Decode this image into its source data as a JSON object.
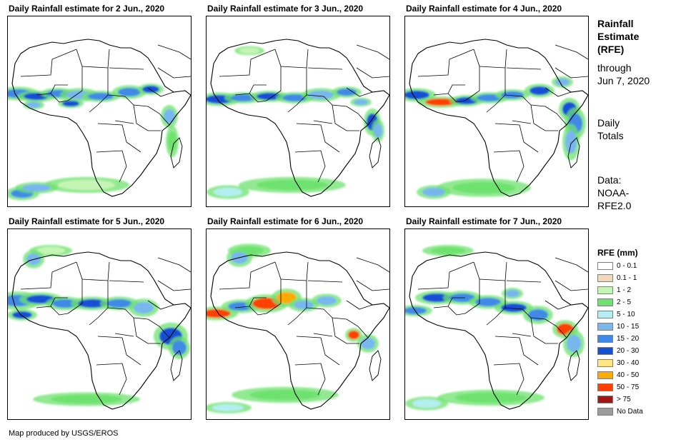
{
  "panels": [
    {
      "title": "Daily Rainfall estimate for 2 Jun., 2020",
      "map_label": "Rainfall map of Africa, 2 Jun. 2020"
    },
    {
      "title": "Daily Rainfall estimate for 3 Jun., 2020",
      "map_label": "Rainfall map of Africa, 3 Jun. 2020"
    },
    {
      "title": "Daily Rainfall estimate for 4 Jun., 2020",
      "map_label": "Rainfall map of Africa, 4 Jun. 2020"
    },
    {
      "title": "Daily Rainfall estimate for 5 Jun., 2020",
      "map_label": "Rainfall map of Africa, 5 Jun. 2020"
    },
    {
      "title": "Daily Rainfall estimate for 6 Jun., 2020",
      "map_label": "Rainfall map of Africa, 6 Jun. 2020"
    },
    {
      "title": "Daily Rainfall estimate for 7 Jun., 2020",
      "map_label": "Rainfall map of Africa, 7 Jun. 2020"
    }
  ],
  "sidebar": {
    "title_lines": [
      "Rainfall",
      "Estimate",
      "(RFE)"
    ],
    "through_lines": [
      "through",
      "Jun 7, 2020"
    ],
    "totals_lines": [
      "Daily",
      "Totals"
    ],
    "data_lines": [
      "Data:",
      "NOAA-",
      "RFE2.0"
    ]
  },
  "legend": {
    "title": "RFE (mm)",
    "items": [
      {
        "label": "0 - 0.1",
        "color": "#ffffff"
      },
      {
        "label": "0.1 - 1",
        "color": "#f1d8b8"
      },
      {
        "label": "1 - 2",
        "color": "#c5f5b5"
      },
      {
        "label": "2 - 5",
        "color": "#6ee26e"
      },
      {
        "label": "5 - 10",
        "color": "#b4eef0"
      },
      {
        "label": "10 - 15",
        "color": "#78b6ee"
      },
      {
        "label": "15 - 20",
        "color": "#3f8ae6"
      },
      {
        "label": "20 - 30",
        "color": "#1450d6"
      },
      {
        "label": "30 - 40",
        "color": "#ffe680"
      },
      {
        "label": "40 - 50",
        "color": "#ffaa00"
      },
      {
        "label": "50 - 75",
        "color": "#ff4000"
      },
      {
        "label": "> 75",
        "color": "#a81414"
      },
      {
        "label": "No Data",
        "color": "#9c9c9c"
      }
    ]
  },
  "credit": "Map produced by USGS/EROS"
}
